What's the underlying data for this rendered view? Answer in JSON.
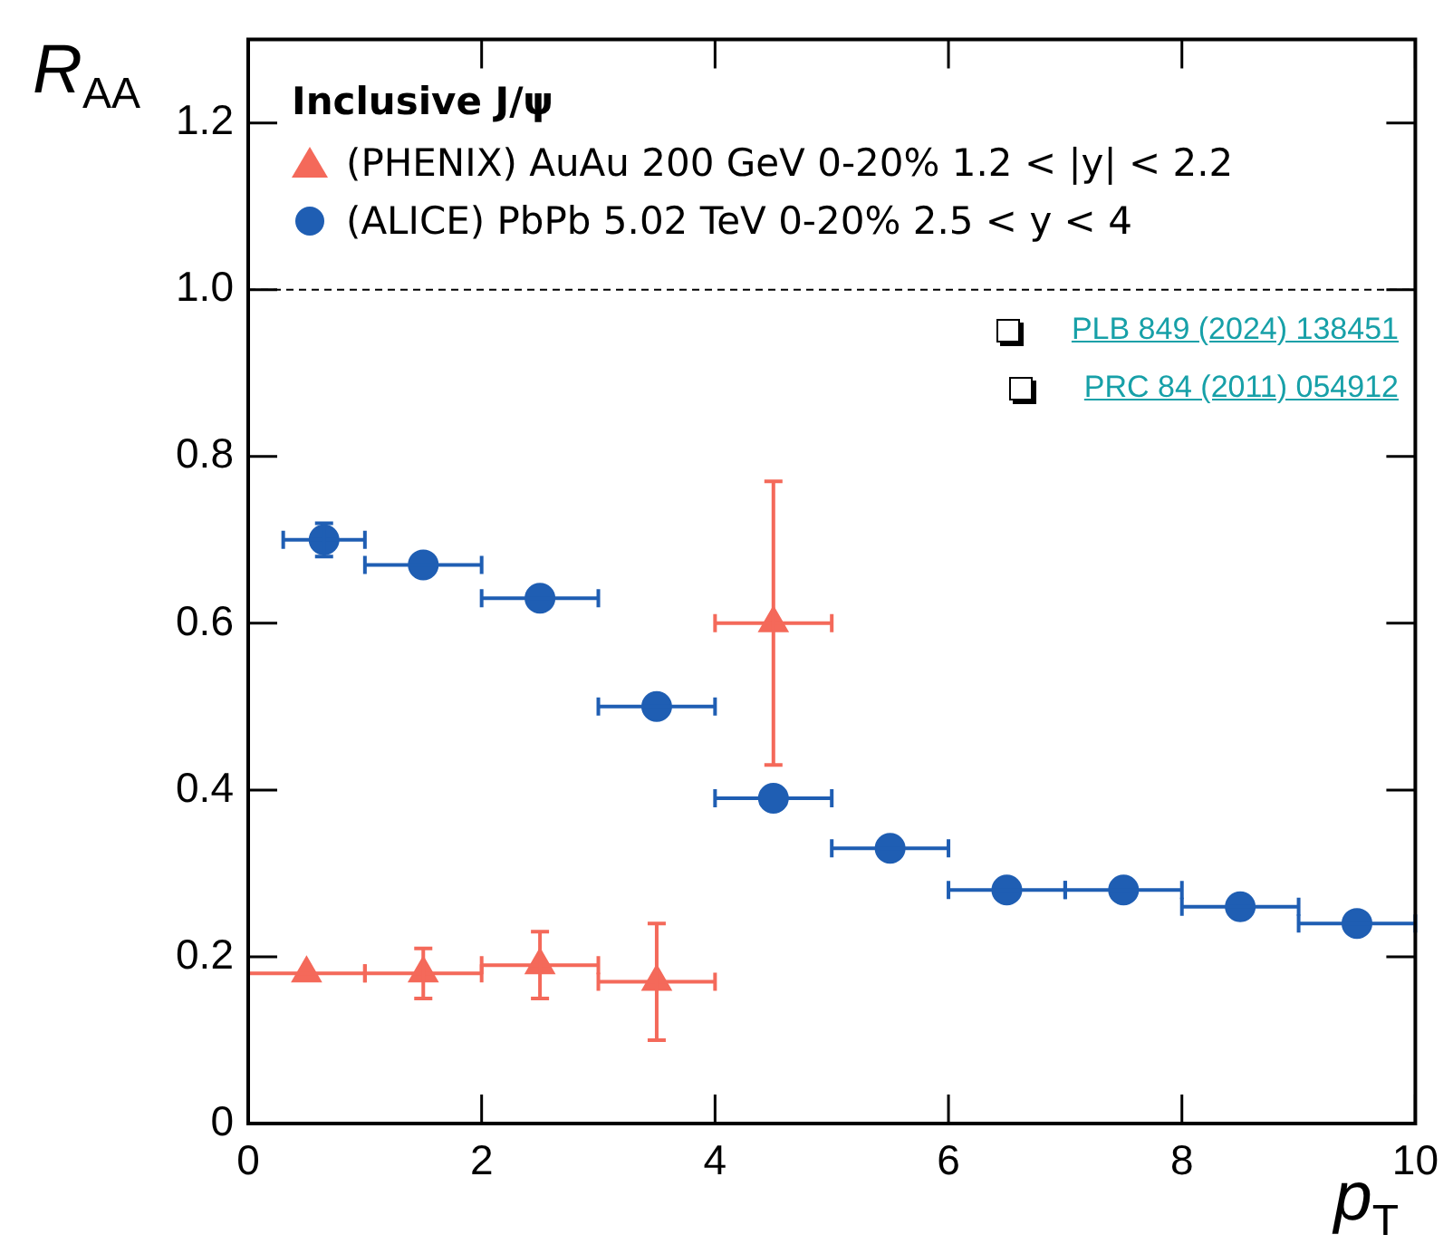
{
  "chart_data": {
    "type": "scatter",
    "xlabel": "p$_{T}$",
    "ylabel": "R$_{AA}$",
    "legend_title": "Inclusive J/ψ",
    "legend": "top left",
    "grid": false,
    "xlim": [
      0,
      10
    ],
    "xticks": [
      0,
      2,
      4,
      6,
      8,
      10
    ],
    "ylim": [
      0,
      1.3
    ],
    "yticks": [
      0,
      0.2,
      0.4,
      0.6,
      0.8,
      {
        "value": 1,
        "label": "1.0"
      },
      1.2
    ],
    "ref_lines": [
      {
        "axis": "y",
        "value": 1,
        "line_style": "dashed",
        "color": "#000000"
      }
    ],
    "annotations": [
      "PLB 849 (2024) 138451",
      "PRC 84 (2011) 054912"
    ],
    "series": [
      {
        "name": "(PHENIX) AuAu 200 GeV 0-20% 1.2 < |y| < 2.2",
        "color": "#f4695a",
        "marker": "triangle",
        "x": [
          0.5,
          1.5,
          2.5,
          3.5,
          4.5
        ],
        "values": [
          0.18,
          0.18,
          0.19,
          0.17,
          0.6
        ],
        "errors": [
          null,
          0.03,
          [
            0.15,
            0.23
          ],
          [
            0.1,
            0.24
          ],
          [
            0.43,
            0.77
          ]
        ],
        "xerrors": [
          0.5,
          0.5,
          0.5,
          0.5,
          0.5
        ]
      },
      {
        "name": "(ALICE) PbPb 5.02 TeV 0-20% 2.5 < y < 4",
        "color": "#1f5eb3",
        "marker": "circle",
        "x": [
          0.65,
          1.5,
          2.5,
          3.5,
          4.5,
          5.5,
          6.5,
          7.5,
          8.5,
          9.5
        ],
        "values": [
          0.7,
          0.67,
          0.63,
          0.5,
          0.39,
          0.33,
          0.28,
          0.28,
          0.26,
          0.24
        ],
        "errors": [
          0.02,
          null,
          null,
          null,
          null,
          null,
          null,
          null,
          null,
          null
        ],
        "xerrors": [
          [
            0.3,
            1
          ],
          0.5,
          0.5,
          0.5,
          0.5,
          0.5,
          0.5,
          0.5,
          0.5,
          0.5
        ]
      }
    ]
  }
}
